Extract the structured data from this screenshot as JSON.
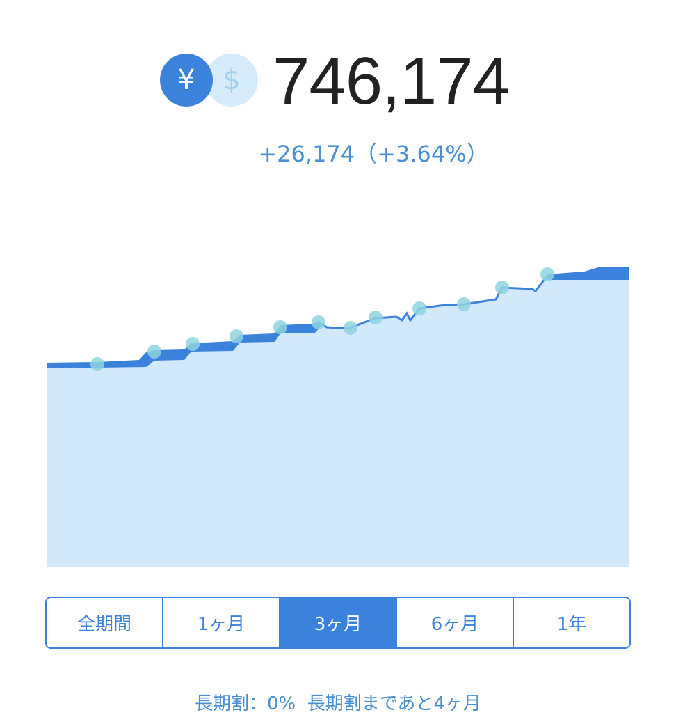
{
  "header": {
    "yen_icon": "¥",
    "dollar_icon": "$",
    "amount": "746,174",
    "change": "+26,174（+3.64%）"
  },
  "tabs": {
    "items": [
      "全期間",
      "1ヶ月",
      "3ヶ月",
      "6ヶ月",
      "1年"
    ],
    "selected": 2
  },
  "footer": {
    "discount": "長期割：0%",
    "remaining": "長期割まであと4ヶ月"
  }
}
